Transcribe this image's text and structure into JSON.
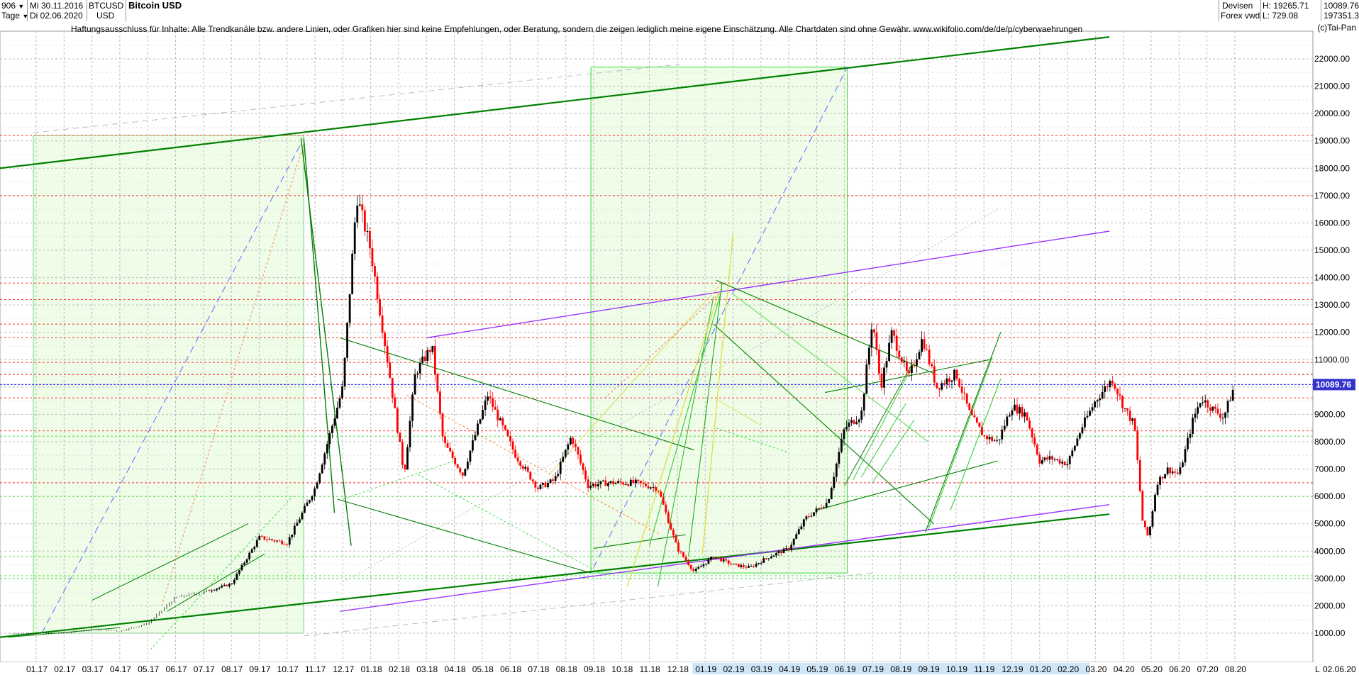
{
  "header": {
    "count": "906",
    "date_from": "Mi 30.11.2016",
    "interval": "Tage",
    "date_to": "Di 02.06.2020",
    "symbol": "BTCUSD",
    "currency": "USD",
    "title": "Bitcoin USD",
    "source1": "Devisen",
    "source2": "Forex vwd",
    "high_label": "H: 19265.71",
    "low_label": "L: 729.08",
    "last_value": "10089.76",
    "volume_value": "197351.3/",
    "dropdown_glyph": "▼"
  },
  "disclaimer": "Haftungsausschluss für Inhalte: Alle Trendkanäle bzw. andere Linien, oder Grafiken hier sind keine Empfehlungen, oder Beratung, sondern die zeigen lediglich meine eigene Einschätzung. Alle Chartdaten sind ohne Gewähr.  www.wikifolio.com/de/de/p/cyberwaehrungen",
  "copyright": "(c)Tai-Pan",
  "colors": {
    "candle_up": "#000000",
    "candle_down": "#ff0000",
    "trend_dark_green": "#008000",
    "trend_green": "#33cc33",
    "purple": "#9933ff",
    "blue_dashed": "#6666ff",
    "red_dotted": "#ff3333",
    "box_fill": "#e8fbe0",
    "price_tag": "#3333cc"
  },
  "chart_data": {
    "type": "candlestick",
    "title": "Bitcoin USD",
    "last_price": 10089.76,
    "last_price_label": "10089.76",
    "y_ticks": [
      1000,
      2000,
      3000,
      4000,
      5000,
      6000,
      7000,
      8000,
      9000,
      10000,
      11000,
      12000,
      13000,
      14000,
      15000,
      16000,
      17000,
      18000,
      19000,
      20000,
      21000,
      22000
    ],
    "y_tick_labels": [
      "1000.00",
      "2000.00",
      "3000.00",
      "4000.00",
      "5000.00",
      "6000.00",
      "7000.00",
      "8000.00",
      "9000.00",
      "10000.00",
      "11000.00",
      "12000.00",
      "13000.00",
      "14000.00",
      "15000.00",
      "16000.00",
      "17000.00",
      "18000.00",
      "19000.00",
      "20000.00",
      "21000.00",
      "22000.00"
    ],
    "x_tick_labels": [
      "01.17",
      "02.17",
      "03.17",
      "04.17",
      "05.17",
      "06.17",
      "07.17",
      "08.17",
      "09.17",
      "10.17",
      "11.17",
      "12.17",
      "01.18",
      "02.18",
      "03.18",
      "04.18",
      "05.18",
      "06.18",
      "07.18",
      "08.18",
      "09.18",
      "10.18",
      "11.18",
      "12.18",
      "01.19",
      "02.19",
      "03.19",
      "04.19",
      "05.19",
      "06.19",
      "07.19",
      "08.19",
      "09.19",
      "10.19",
      "11.19",
      "12.19",
      "01.20",
      "02.20",
      "03.20",
      "04.20",
      "05.20",
      "06.20",
      "07.20",
      "08.20"
    ],
    "end_label": "02.06.20",
    "end_marker": "L",
    "monthly_path": [
      [
        0,
        990
      ],
      [
        1,
        1000
      ],
      [
        2,
        1150
      ],
      [
        3,
        1080
      ],
      [
        4,
        1350
      ],
      [
        5,
        2300
      ],
      [
        6,
        2500
      ],
      [
        7,
        2800
      ],
      [
        8,
        4500
      ],
      [
        9,
        4300
      ],
      [
        10,
        6300
      ],
      [
        11,
        10000
      ],
      [
        11.5,
        17000
      ],
      [
        12,
        15000
      ],
      [
        12.6,
        11000
      ],
      [
        13.2,
        6800
      ],
      [
        13.6,
        10500
      ],
      [
        14.2,
        11500
      ],
      [
        14.6,
        8000
      ],
      [
        15.3,
        6800
      ],
      [
        16.2,
        9700
      ],
      [
        17.2,
        7500
      ],
      [
        18,
        6300
      ],
      [
        18.6,
        6600
      ],
      [
        19.2,
        8200
      ],
      [
        19.8,
        6400
      ],
      [
        20.5,
        6500
      ],
      [
        21.5,
        6500
      ],
      [
        22.3,
        6300
      ],
      [
        23,
        4100
      ],
      [
        23.6,
        3250
      ],
      [
        24.3,
        3800
      ],
      [
        25,
        3500
      ],
      [
        25.6,
        3400
      ],
      [
        26.3,
        3800
      ],
      [
        27,
        4100
      ],
      [
        27.6,
        5200
      ],
      [
        28.4,
        5800
      ],
      [
        29,
        8500
      ],
      [
        29.6,
        9000
      ],
      [
        30,
        12500
      ],
      [
        30.3,
        10000
      ],
      [
        30.7,
        12000
      ],
      [
        31.3,
        10300
      ],
      [
        31.8,
        11800
      ],
      [
        32.3,
        10000
      ],
      [
        33,
        10500
      ],
      [
        33.5,
        9000
      ],
      [
        34,
        8200
      ],
      [
        34.5,
        8000
      ],
      [
        35,
        9300
      ],
      [
        35.5,
        9000
      ],
      [
        36,
        7300
      ],
      [
        36.4,
        7400
      ],
      [
        37,
        7200
      ],
      [
        37.5,
        8500
      ],
      [
        38,
        9500
      ],
      [
        38.6,
        10300
      ],
      [
        39,
        9300
      ],
      [
        39.4,
        8600
      ],
      [
        39.7,
        5000
      ],
      [
        39.9,
        4500
      ],
      [
        40.2,
        6500
      ],
      [
        40.6,
        7000
      ],
      [
        41,
        6800
      ],
      [
        41.5,
        8800
      ],
      [
        41.8,
        9600
      ],
      [
        42.2,
        9200
      ],
      [
        42.6,
        8900
      ],
      [
        43,
        10089.76
      ]
    ]
  }
}
